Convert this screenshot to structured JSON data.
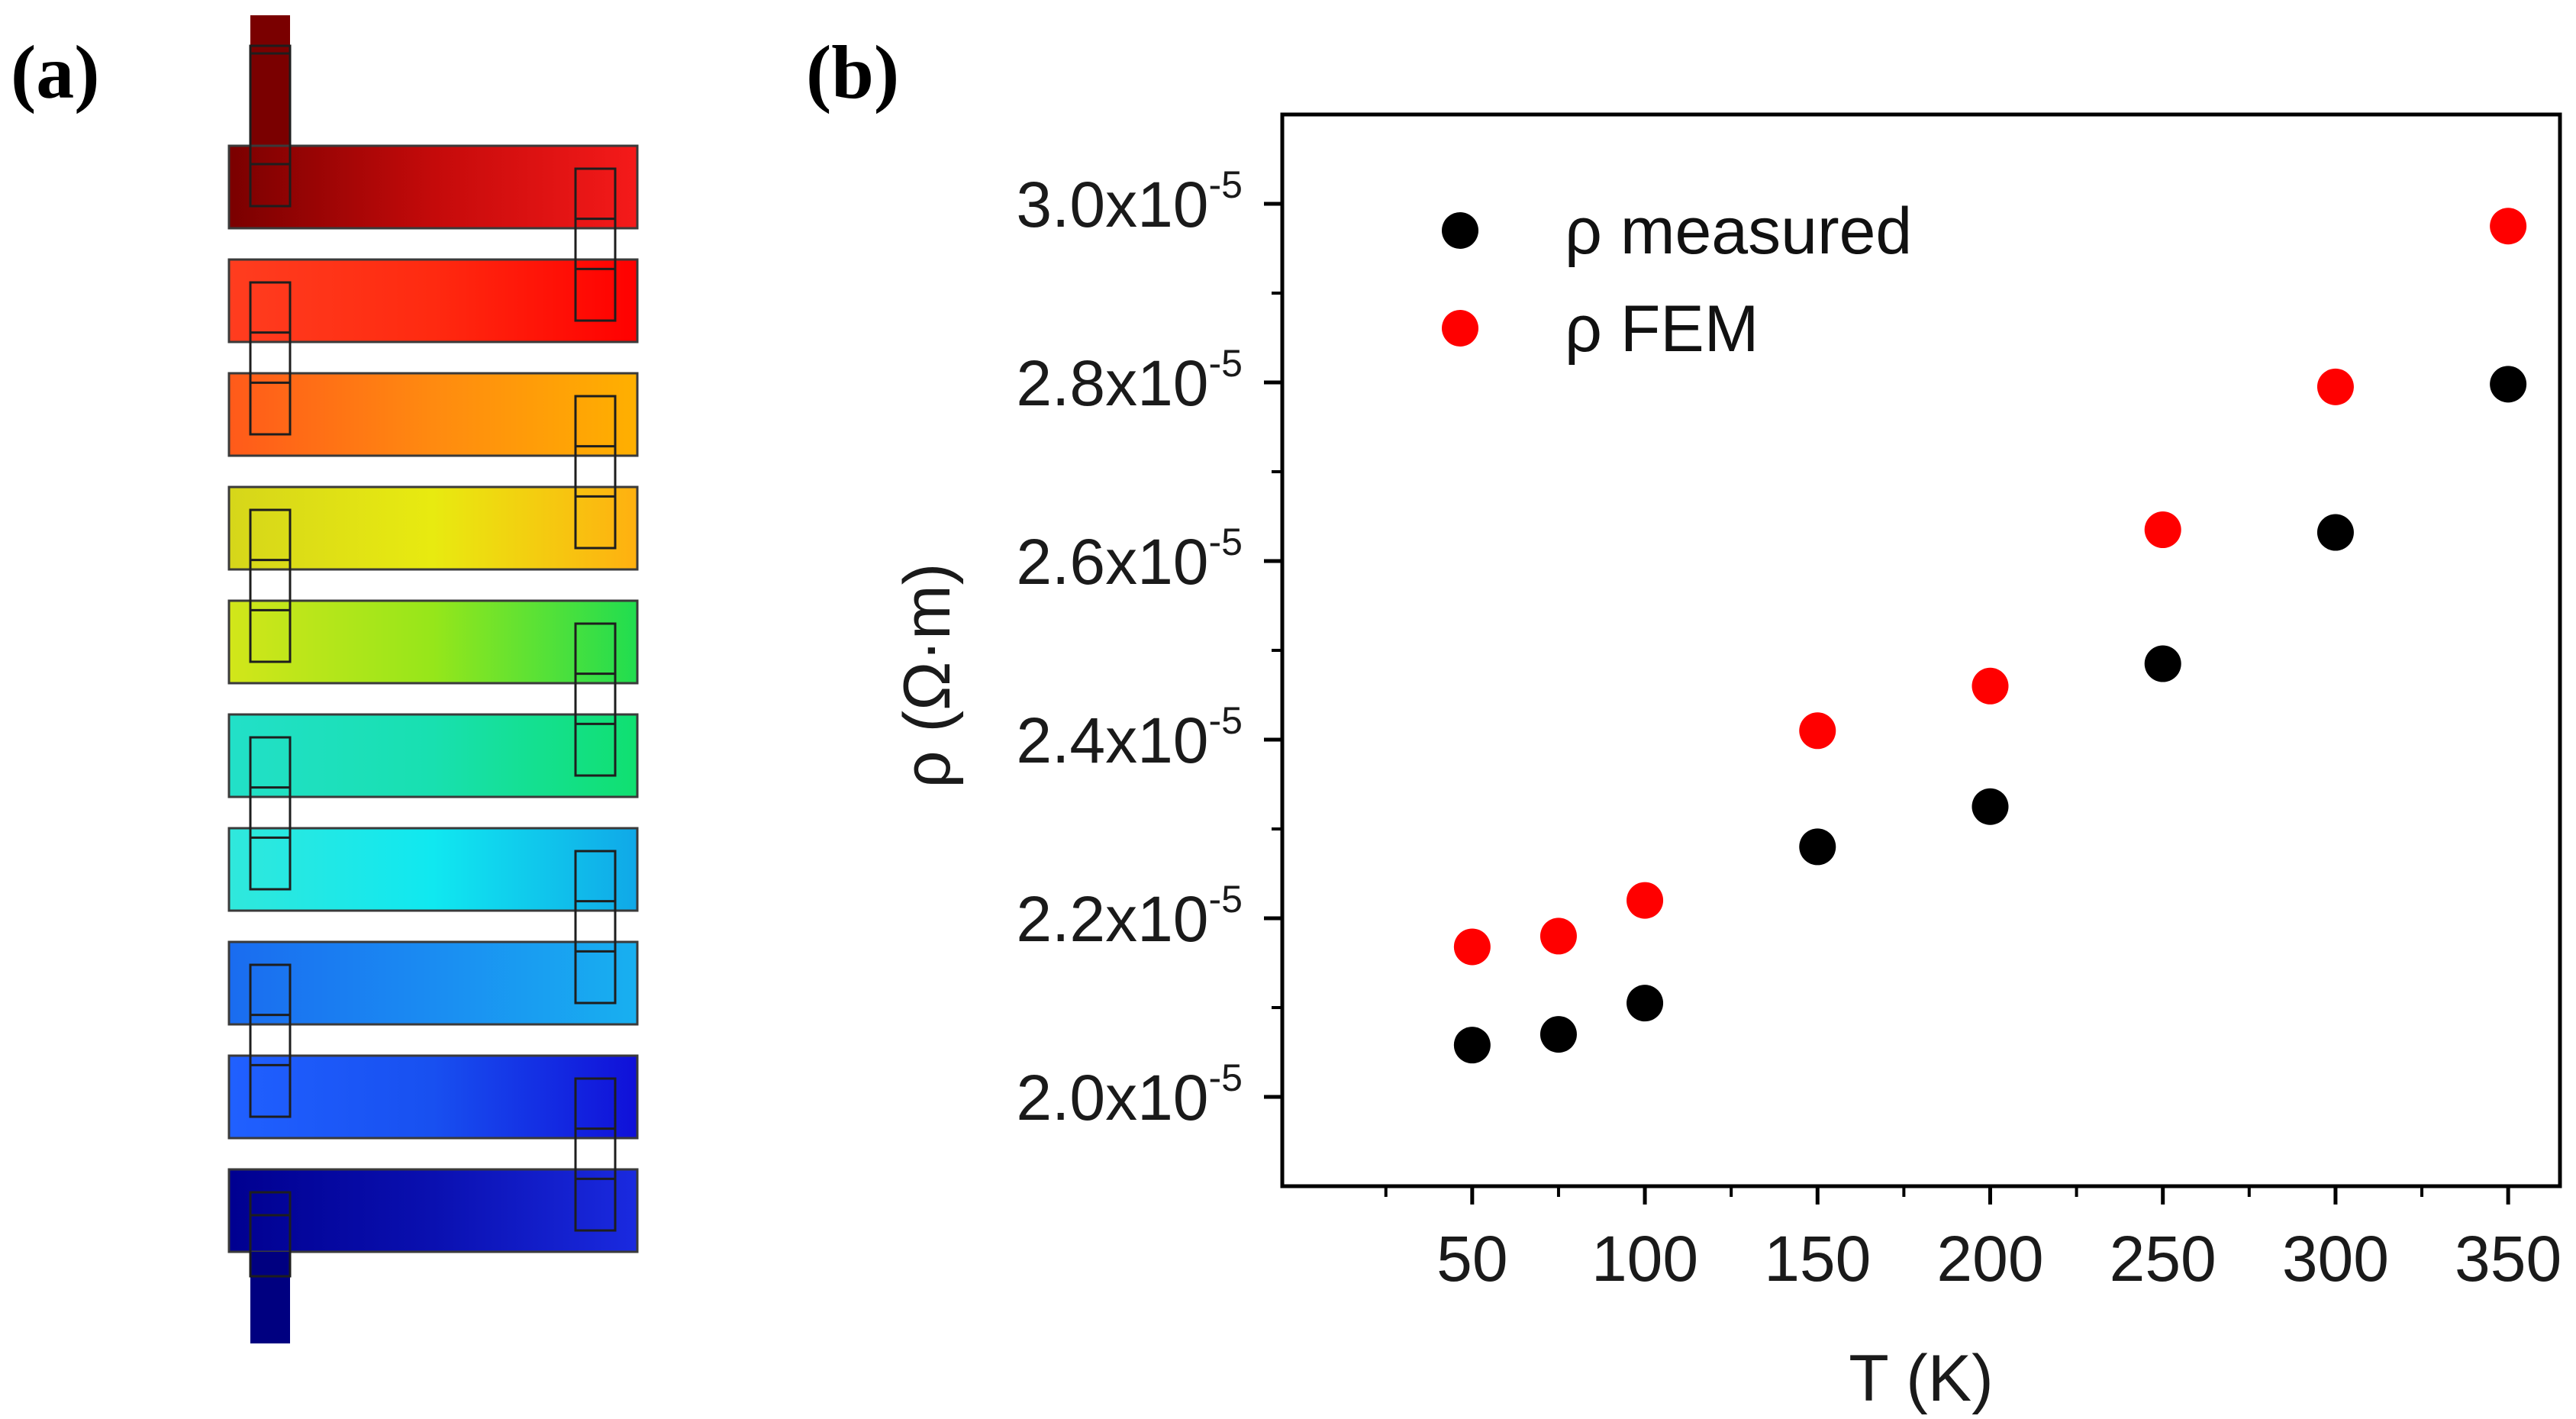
{
  "panel_a": {
    "label": "(a)",
    "colors": {
      "bar_gradients": [
        [
          "#7a0000",
          "#c40a0a",
          "#f51a1a"
        ],
        [
          "#ff3d1f",
          "#ff2a10",
          "#ff0000"
        ],
        [
          "#ff5a1a",
          "#ff8a10",
          "#ffb000"
        ],
        [
          "#d6d61a",
          "#e8ea10",
          "#ffb010"
        ],
        [
          "#d2e61a",
          "#96e61a",
          "#20dd50"
        ],
        [
          "#22e0c8",
          "#18e0b0",
          "#10e070"
        ],
        [
          "#30e8dc",
          "#10e8f0",
          "#10a8e8"
        ],
        [
          "#1a6cf0",
          "#1a8cf2",
          "#18b0f0"
        ],
        [
          "#2060ff",
          "#1850f0",
          "#1010d8"
        ],
        [
          "#000090",
          "#0a10b0",
          "#1a2ae0"
        ]
      ],
      "top_lead": "#7a0000",
      "bottom_lead": "#000080"
    }
  },
  "panel_b": {
    "label": "(b)",
    "chart_data": {
      "type": "scatter",
      "title": "",
      "xlabel": "T (K)",
      "ylabel": "ρ (Ω·m)",
      "xlim": [
        -5,
        365
      ],
      "ylim": [
        1.9e-05,
        3.1e-05
      ],
      "x_ticks": [
        50,
        100,
        150,
        200,
        250,
        300,
        350
      ],
      "x_tick_labels": [
        "50",
        "100",
        "150",
        "200",
        "250",
        "300",
        "350"
      ],
      "y_ticks": [
        2e-05,
        2.2e-05,
        2.4e-05,
        2.6e-05,
        2.8e-05,
        3e-05
      ],
      "y_tick_mantissas": [
        "2.0x10",
        "2.2x10",
        "2.4x10",
        "2.6x10",
        "2.8x10",
        "3.0x10"
      ],
      "y_tick_exponent": "-5",
      "legend_position": "top-left",
      "series": [
        {
          "name": "ρ measured",
          "color": "#000000",
          "x": [
            50,
            75,
            100,
            150,
            200,
            250,
            300,
            350
          ],
          "values": [
            2.058e-05,
            2.07e-05,
            2.105e-05,
            2.28e-05,
            2.325e-05,
            2.485e-05,
            2.632e-05,
            2.798e-05
          ]
        },
        {
          "name": "ρ FEM",
          "color": "#ff0000",
          "x": [
            50,
            75,
            100,
            150,
            200,
            250,
            300,
            350
          ],
          "values": [
            2.168e-05,
            2.18e-05,
            2.22e-05,
            2.41e-05,
            2.46e-05,
            2.635e-05,
            2.795e-05,
            2.975e-05
          ]
        }
      ]
    }
  }
}
